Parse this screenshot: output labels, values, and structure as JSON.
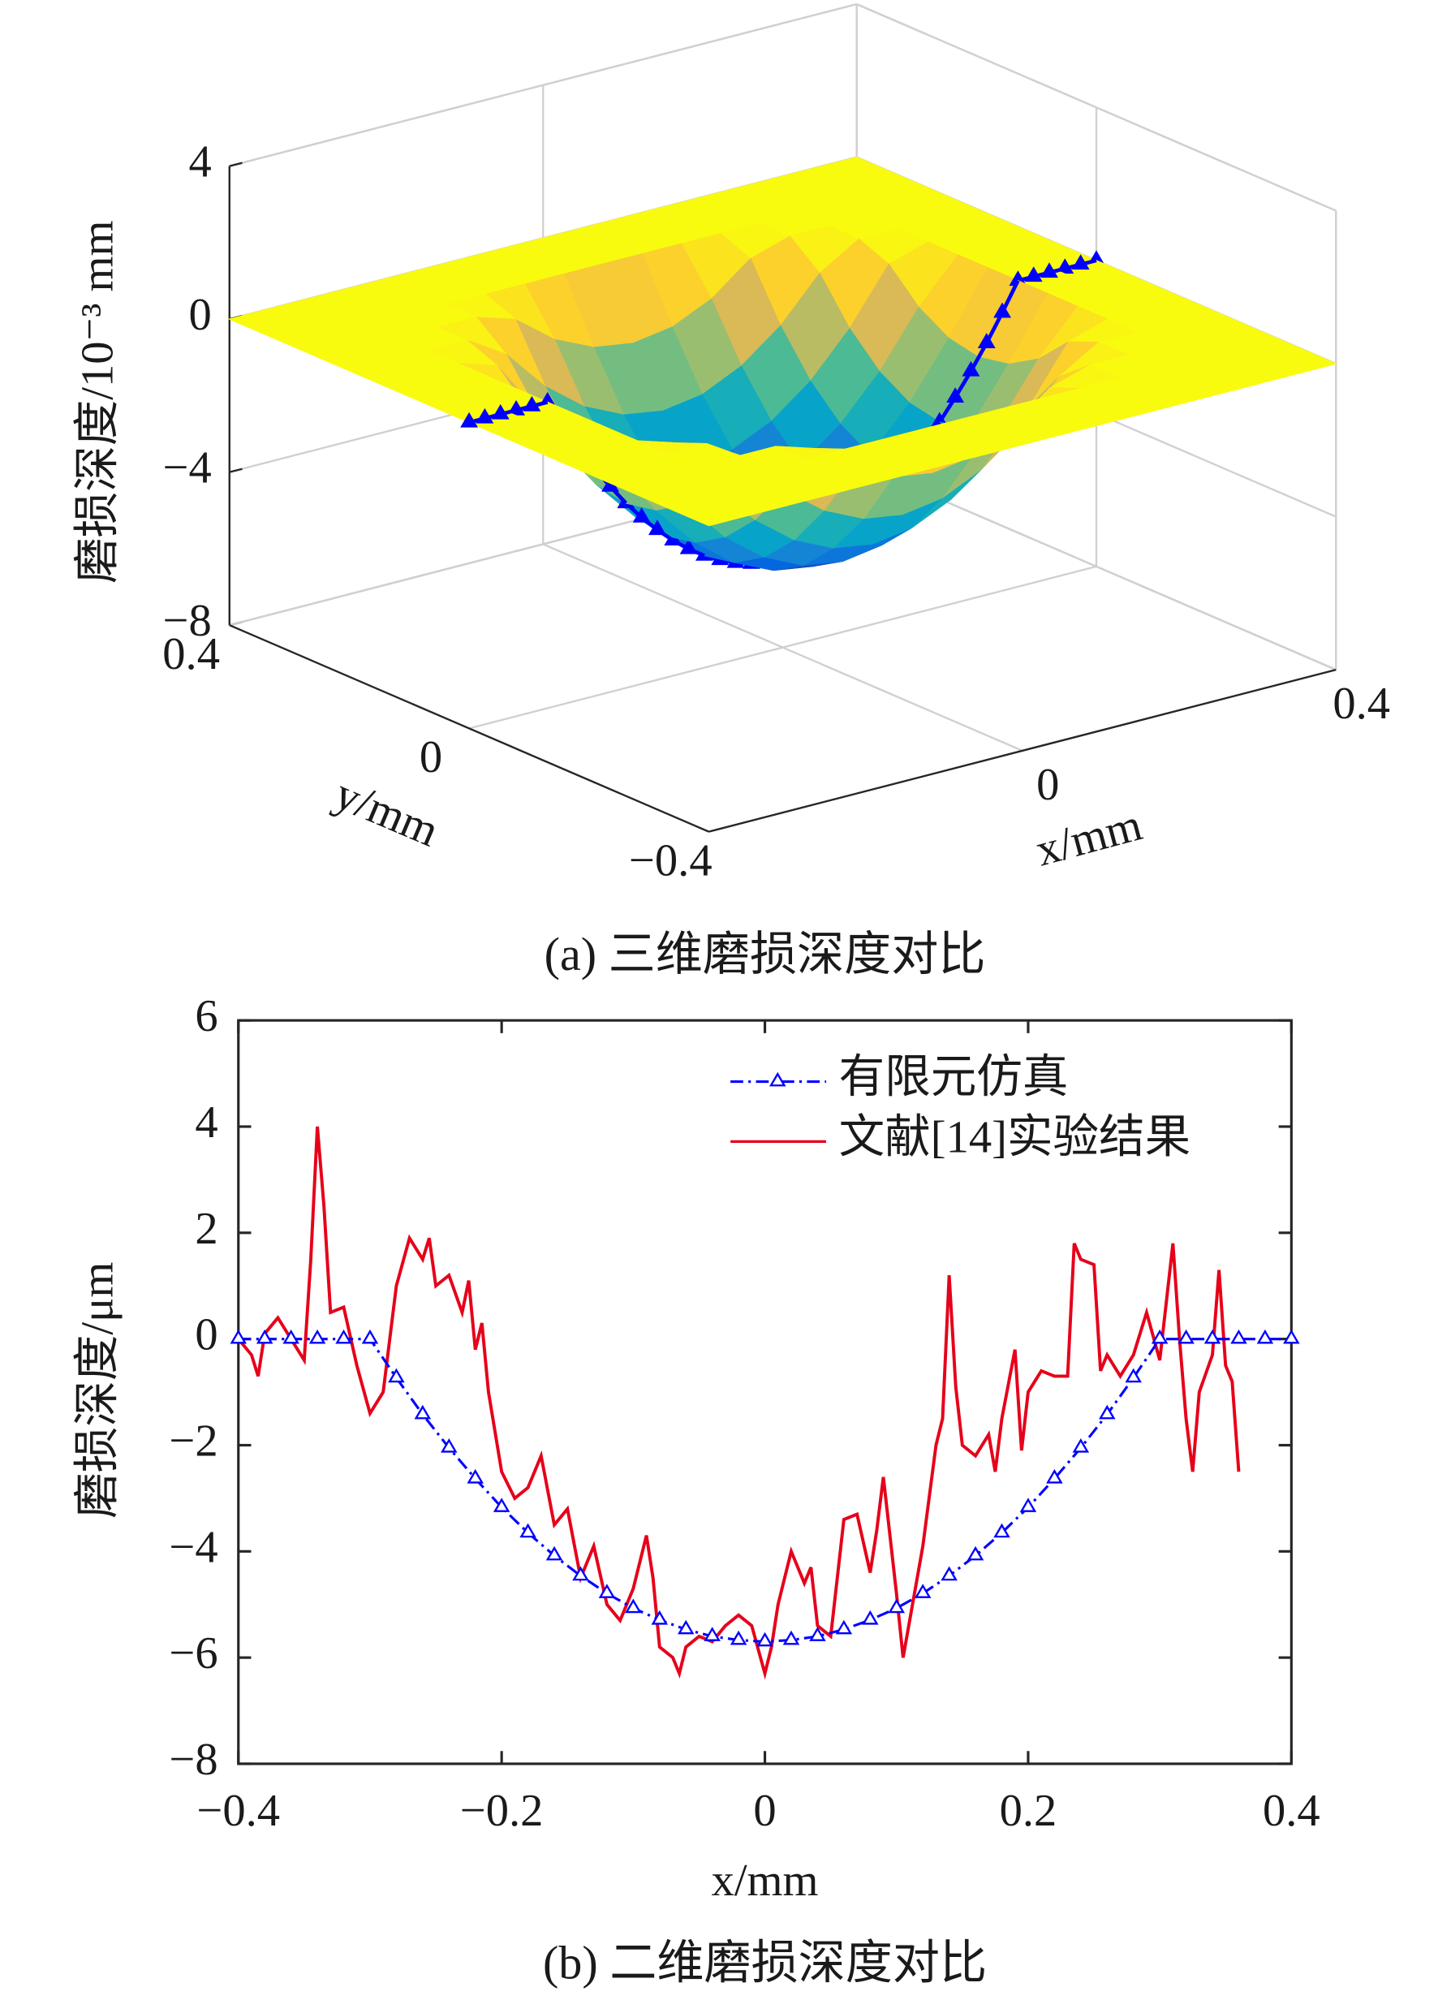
{
  "chart_data": [
    {
      "type": "surface3d",
      "title": "(a) 三维磨损深度对比",
      "xlabel": "x/mm",
      "ylabel": "y/mm",
      "zlabel": "磨损深度/10⁻³ mm",
      "x": [
        -0.4,
        -0.35,
        -0.3,
        -0.25,
        -0.2,
        -0.15,
        -0.1,
        -0.05,
        0,
        0.05,
        0.1,
        0.15,
        0.2,
        0.25,
        0.3,
        0.35,
        0.4
      ],
      "y": [
        -0.4,
        -0.35,
        -0.3,
        -0.25,
        -0.2,
        -0.15,
        -0.1,
        -0.05,
        0,
        0.05,
        0.1,
        0.15,
        0.2,
        0.25,
        0.3,
        0.35,
        0.4
      ],
      "z": [
        [
          0,
          0,
          0,
          0,
          0,
          0,
          0,
          0,
          0,
          0,
          0,
          0,
          0,
          0,
          0,
          0,
          0
        ],
        [
          0,
          0,
          0,
          0,
          0,
          0,
          0,
          0,
          0,
          0,
          0,
          0,
          0,
          0,
          0,
          0,
          0
        ],
        [
          0,
          0,
          0,
          0,
          0,
          0,
          0,
          0,
          0,
          0,
          0,
          0,
          0,
          0,
          0,
          0,
          0
        ],
        [
          0,
          0,
          0,
          0,
          0,
          -0.32,
          -1.11,
          -1.58,
          -1.74,
          -1.58,
          -1.11,
          -0.32,
          0,
          0,
          0,
          0,
          0
        ],
        [
          0,
          0,
          0,
          0,
          -0.63,
          -1.74,
          -2.53,
          -3.01,
          -3.17,
          -3.01,
          -2.53,
          -1.74,
          -0.63,
          0,
          0,
          0,
          0
        ],
        [
          0,
          0,
          0,
          -0.32,
          -1.74,
          -2.85,
          -3.64,
          -4.12,
          -4.28,
          -4.12,
          -3.64,
          -2.85,
          -1.74,
          -0.32,
          0,
          0,
          0
        ],
        [
          0,
          0,
          0,
          -1.11,
          -2.53,
          -3.64,
          -4.43,
          -4.91,
          -5.07,
          -4.91,
          -4.43,
          -3.64,
          -2.53,
          -1.11,
          0,
          0,
          0
        ],
        [
          0,
          0,
          0,
          -1.58,
          -3.01,
          -4.12,
          -4.91,
          -5.38,
          -5.54,
          -5.38,
          -4.91,
          -4.12,
          -3.01,
          -1.58,
          0,
          0,
          0
        ],
        [
          0,
          0,
          0,
          -1.74,
          -3.17,
          -4.28,
          -5.07,
          -5.54,
          -5.7,
          -5.54,
          -5.07,
          -4.28,
          -3.17,
          -1.74,
          0,
          0,
          0
        ],
        [
          0,
          0,
          0,
          -1.58,
          -3.01,
          -4.12,
          -4.91,
          -5.38,
          -5.54,
          -5.38,
          -4.91,
          -4.12,
          -3.01,
          -1.58,
          0,
          0,
          0
        ],
        [
          0,
          0,
          0,
          -1.11,
          -2.53,
          -3.64,
          -4.43,
          -4.91,
          -5.07,
          -4.91,
          -4.43,
          -3.64,
          -2.53,
          -1.11,
          0,
          0,
          0
        ],
        [
          0,
          0,
          0,
          -0.32,
          -1.74,
          -2.85,
          -3.64,
          -4.12,
          -4.28,
          -4.12,
          -3.64,
          -2.85,
          -1.74,
          -0.32,
          0,
          0,
          0
        ],
        [
          0,
          0,
          0,
          0,
          -0.63,
          -1.74,
          -2.53,
          -3.01,
          -3.17,
          -3.01,
          -2.53,
          -1.74,
          -0.63,
          0,
          0,
          0,
          0
        ],
        [
          0,
          0,
          0,
          0,
          0,
          -0.32,
          -1.11,
          -1.58,
          -1.74,
          -1.58,
          -1.11,
          -0.32,
          0,
          0,
          0,
          0,
          0
        ],
        [
          0,
          0,
          0,
          0,
          0,
          0,
          0,
          0,
          0,
          0,
          0,
          0,
          0,
          0,
          0,
          0,
          0
        ],
        [
          0,
          0,
          0,
          0,
          0,
          0,
          0,
          0,
          0,
          0,
          0,
          0,
          0,
          0,
          0,
          0,
          0
        ],
        [
          0,
          0,
          0,
          0,
          0,
          0,
          0,
          0,
          0,
          0,
          0,
          0,
          0,
          0,
          0,
          0,
          0
        ]
      ],
      "xlim": [
        -0.4,
        0.4
      ],
      "ylim": [
        -0.4,
        0.4
      ],
      "zlim": [
        -8,
        4
      ],
      "xticks": [
        0,
        0.4
      ],
      "yticks": [
        {
          "value": -0.4,
          "label": "−0.4"
        },
        0,
        0.4
      ],
      "zticks": [
        {
          "value": -8,
          "label": "−8"
        },
        {
          "value": -4,
          "label": "−4"
        },
        0,
        4
      ],
      "colormap": [
        "#352a87",
        "#0363e1",
        "#1485d4",
        "#06a7c6",
        "#38b99e",
        "#92bf73",
        "#d9ba56",
        "#fcce2e",
        "#f9fb0e"
      ],
      "grid": true
    },
    {
      "type": "line",
      "title": "(b) 二维磨损深度对比",
      "xlabel": "x/mm",
      "ylabel": "磨损深度/μm",
      "xlim": [
        -0.4,
        0.4
      ],
      "ylim": [
        -8,
        6
      ],
      "xticks": [
        {
          "value": -0.4,
          "label": "−0.4"
        },
        {
          "value": -0.2,
          "label": "−0.2"
        },
        0,
        0.2,
        0.4
      ],
      "yticks": [
        {
          "value": -8,
          "label": "−8"
        },
        {
          "value": -6,
          "label": "−6"
        },
        {
          "value": -4,
          "label": "−4"
        },
        {
          "value": -2,
          "label": "−2"
        },
        0,
        2,
        4,
        6
      ],
      "legend": "upper right",
      "series": [
        {
          "name": "有限元仿真",
          "color": "#0000ff",
          "marker": "triangle",
          "linestyle": "dashdot",
          "x": [
            -0.4,
            -0.38,
            -0.36,
            -0.34,
            -0.32,
            -0.3,
            -0.28,
            -0.26,
            -0.24,
            -0.22,
            -0.2,
            -0.18,
            -0.16,
            -0.14,
            -0.12,
            -0.1,
            -0.08,
            -0.06,
            -0.04,
            -0.02,
            0,
            0.02,
            0.04,
            0.06,
            0.08,
            0.1,
            0.12,
            0.14,
            0.16,
            0.18,
            0.2,
            0.22,
            0.24,
            0.26,
            0.28,
            0.3,
            0.32,
            0.34,
            0.36,
            0.38,
            0.4
          ],
          "values": [
            0,
            0,
            0,
            0,
            0,
            0,
            -0.73,
            -1.42,
            -2.05,
            -2.63,
            -3.17,
            -3.65,
            -4.08,
            -4.46,
            -4.79,
            -5.07,
            -5.29,
            -5.47,
            -5.6,
            -5.67,
            -5.7,
            -5.67,
            -5.6,
            -5.47,
            -5.29,
            -5.07,
            -4.79,
            -4.46,
            -4.08,
            -3.65,
            -3.17,
            -2.63,
            -2.05,
            -1.42,
            -0.73,
            0,
            0,
            0,
            0,
            0,
            0
          ]
        },
        {
          "name": "文献[14]实验结果",
          "color": "#e6001a",
          "linestyle": "solid",
          "x": [
            -0.4,
            -0.39,
            -0.385,
            -0.38,
            -0.37,
            -0.36,
            -0.35,
            -0.345,
            -0.34,
            -0.335,
            -0.33,
            -0.32,
            -0.31,
            -0.3,
            -0.29,
            -0.28,
            -0.27,
            -0.26,
            -0.255,
            -0.25,
            -0.24,
            -0.23,
            -0.225,
            -0.22,
            -0.215,
            -0.21,
            -0.2,
            -0.19,
            -0.18,
            -0.17,
            -0.16,
            -0.15,
            -0.14,
            -0.13,
            -0.12,
            -0.11,
            -0.1,
            -0.09,
            -0.085,
            -0.08,
            -0.07,
            -0.065,
            -0.06,
            -0.05,
            -0.04,
            -0.03,
            -0.02,
            -0.01,
            0,
            0.005,
            0.01,
            0.02,
            0.03,
            0.035,
            0.04,
            0.05,
            0.06,
            0.07,
            0.08,
            0.085,
            0.09,
            0.1,
            0.105,
            0.11,
            0.12,
            0.13,
            0.135,
            0.14,
            0.145,
            0.15,
            0.16,
            0.17,
            0.175,
            0.18,
            0.19,
            0.195,
            0.2,
            0.21,
            0.22,
            0.23,
            0.235,
            0.24,
            0.25,
            0.255,
            0.26,
            0.27,
            0.28,
            0.29,
            0.3,
            0.31,
            0.315,
            0.32,
            0.325,
            0.33,
            0.34,
            0.345,
            0.35,
            0.355,
            0.36
          ],
          "values": [
            0,
            -0.3,
            -0.7,
            0.1,
            0.4,
            0,
            -0.4,
            1.5,
            4,
            2.5,
            0.5,
            0.6,
            -0.5,
            -1.4,
            -1,
            1,
            1.9,
            1.5,
            1.9,
            1,
            1.2,
            0.5,
            1.1,
            -0.2,
            0.3,
            -1,
            -2.5,
            -3,
            -2.8,
            -2.2,
            -3.5,
            -3.2,
            -4.5,
            -3.9,
            -5,
            -5.3,
            -4.7,
            -3.7,
            -4.5,
            -5.8,
            -6,
            -6.3,
            -5.8,
            -5.6,
            -5.7,
            -5.4,
            -5.2,
            -5.4,
            -6.3,
            -5.8,
            -5,
            -4,
            -4.6,
            -4.3,
            -5.4,
            -5.6,
            -3.4,
            -3.3,
            -4.4,
            -3.6,
            -2.6,
            -4.8,
            -6,
            -5.3,
            -3.9,
            -2,
            -1.5,
            1.2,
            -0.9,
            -2,
            -2.2,
            -1.8,
            -2.5,
            -1.5,
            -0.2,
            -2.1,
            -1,
            -0.6,
            -0.7,
            -0.7,
            1.8,
            1.5,
            1.4,
            -0.6,
            -0.3,
            -0.7,
            -0.3,
            0.5,
            -0.4,
            1.8,
            0,
            -1.5,
            -2.5,
            -1,
            -0.3,
            1.3,
            -0.5,
            -0.8,
            -2.5
          ]
        }
      ]
    }
  ]
}
